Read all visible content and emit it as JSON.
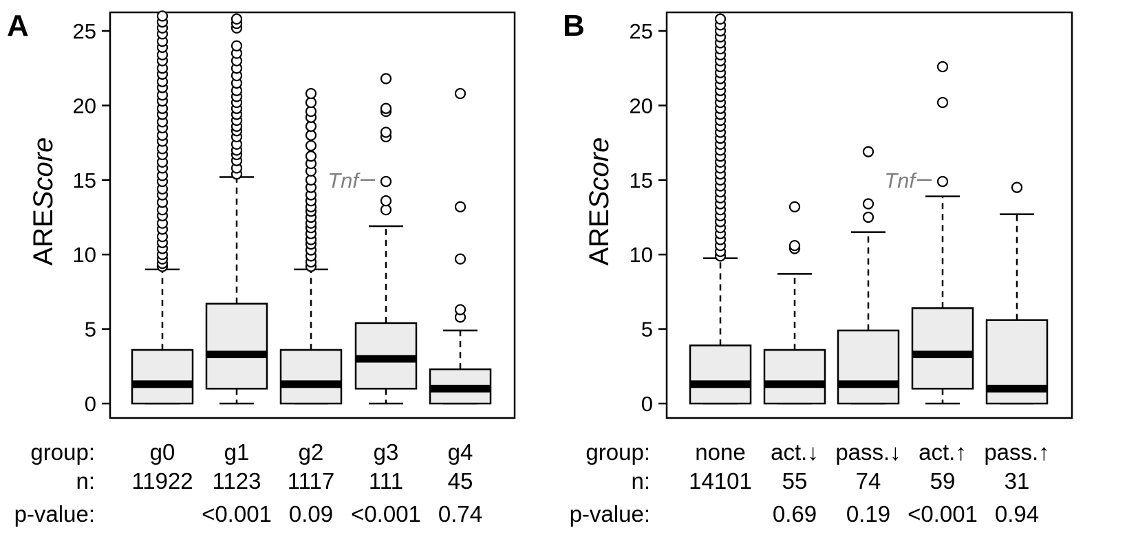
{
  "panels": [
    {
      "label": "A",
      "ylabel_plain": "ARE",
      "ylabel_italic": "Score"
    },
    {
      "label": "B",
      "ylabel_plain": "ARE",
      "ylabel_italic": "Score"
    }
  ],
  "row_labels": {
    "group": "group:",
    "n": "n:",
    "pvalue": "p-value:"
  },
  "annotation": {
    "gene": "Tnf"
  },
  "colors": {
    "box_fill": "#ececec",
    "stroke": "#000000",
    "annotation": "#808080"
  },
  "chart_data": [
    {
      "type": "box",
      "panel": "A",
      "ylim": [
        0,
        26
      ],
      "yticks": [
        0,
        5,
        10,
        15,
        20,
        25
      ],
      "ylabel": "AREScore",
      "categories": [
        "g0",
        "g1",
        "g2",
        "g3",
        "g4"
      ],
      "n": [
        "11922",
        "1123",
        "1117",
        "111",
        "45"
      ],
      "pvalues": [
        "",
        "<0.001",
        "0.09",
        "<0.001",
        "0.74"
      ],
      "boxes": [
        {
          "q1": 0,
          "median": 1.3,
          "q3": 3.6,
          "whisker_low": 0,
          "whisker_high": 9.0,
          "outliers": [
            9.2,
            9.4,
            9.7,
            10.0,
            10.4,
            10.8,
            11.2,
            11.7,
            12.1,
            12.6,
            13.0,
            13.5,
            14.0,
            14.4,
            14.9,
            15.3,
            15.8,
            16.2,
            16.7,
            17.1,
            17.6,
            18.0,
            18.5,
            18.9,
            19.4,
            19.8,
            20.3,
            20.7,
            21.2,
            21.6,
            22.1,
            22.5,
            23.0,
            23.4,
            23.9,
            24.3,
            24.8,
            25.2,
            25.6,
            26.0
          ]
        },
        {
          "q1": 1.0,
          "median": 3.3,
          "q3": 6.7,
          "whisker_low": 0,
          "whisker_high": 15.2,
          "outliers": [
            15.4,
            15.8,
            16.3,
            16.7,
            17.0,
            17.4,
            17.9,
            18.3,
            18.6,
            19.0,
            19.4,
            19.8,
            20.2,
            20.6,
            21.0,
            21.5,
            22.0,
            22.5,
            23.0,
            23.5,
            24.0,
            25.2,
            25.5,
            25.8
          ]
        },
        {
          "q1": 0,
          "median": 1.3,
          "q3": 3.6,
          "whisker_low": 0,
          "whisker_high": 9.0,
          "outliers": [
            9.2,
            9.5,
            9.9,
            10.3,
            10.7,
            11.0,
            11.4,
            11.8,
            12.1,
            12.5,
            12.9,
            13.2,
            13.6,
            14.0,
            14.5,
            15.0,
            15.6,
            16.1,
            16.6,
            17.3,
            18.0,
            18.6,
            19.2,
            19.6,
            20.2,
            20.8
          ]
        },
        {
          "q1": 1.0,
          "median": 3.0,
          "q3": 5.4,
          "whisker_low": 0,
          "whisker_high": 11.9,
          "outliers": [
            13.0,
            13.6,
            14.9,
            17.9,
            18.2,
            19.6,
            19.8,
            21.8
          ]
        },
        {
          "q1": 0,
          "median": 1.0,
          "q3": 2.3,
          "whisker_low": 0,
          "whisker_high": 4.9,
          "outliers": [
            5.8,
            6.3,
            9.7,
            13.2,
            20.8
          ]
        }
      ],
      "annotation": {
        "text": "Tnf",
        "y": 15.0,
        "category": "g3"
      }
    },
    {
      "type": "box",
      "panel": "B",
      "ylim": [
        0,
        26
      ],
      "yticks": [
        0,
        5,
        10,
        15,
        20,
        25
      ],
      "ylabel": "AREScore",
      "categories": [
        "none",
        "act.↓",
        "pass.↓",
        "act.↑",
        "pass.↑"
      ],
      "n": [
        "14101",
        "55",
        "74",
        "59",
        "31"
      ],
      "pvalues": [
        "",
        "0.69",
        "0.19",
        "<0.001",
        "0.94"
      ],
      "boxes": [
        {
          "q1": 0,
          "median": 1.3,
          "q3": 3.9,
          "whisker_low": 0,
          "whisker_high": 9.75,
          "outliers": [
            9.9,
            10.2,
            10.6,
            11.0,
            11.4,
            11.8,
            12.2,
            12.6,
            13.0,
            13.4,
            13.8,
            14.2,
            14.6,
            15.0,
            15.4,
            15.8,
            16.2,
            16.6,
            17.0,
            17.4,
            17.8,
            18.2,
            18.6,
            19.0,
            19.4,
            19.8,
            20.2,
            20.6,
            21.0,
            21.4,
            21.8,
            22.2,
            22.6,
            23.0,
            23.4,
            23.8,
            24.2,
            24.6,
            25.0,
            25.4,
            25.8
          ]
        },
        {
          "q1": 0,
          "median": 1.3,
          "q3": 3.6,
          "whisker_low": 0,
          "whisker_high": 8.7,
          "outliers": [
            10.4,
            10.6,
            13.2
          ]
        },
        {
          "q1": 0,
          "median": 1.3,
          "q3": 4.9,
          "whisker_low": 0,
          "whisker_high": 11.5,
          "outliers": [
            12.5,
            13.4,
            16.9
          ]
        },
        {
          "q1": 1.0,
          "median": 3.3,
          "q3": 6.4,
          "whisker_low": 0,
          "whisker_high": 13.9,
          "outliers": [
            14.9,
            20.2,
            22.6
          ]
        },
        {
          "q1": 0,
          "median": 1.0,
          "q3": 5.6,
          "whisker_low": 0,
          "whisker_high": 12.7,
          "outliers": [
            14.5
          ]
        }
      ],
      "annotation": {
        "text": "Tnf",
        "y": 15.0,
        "category": "act.↑"
      }
    }
  ]
}
